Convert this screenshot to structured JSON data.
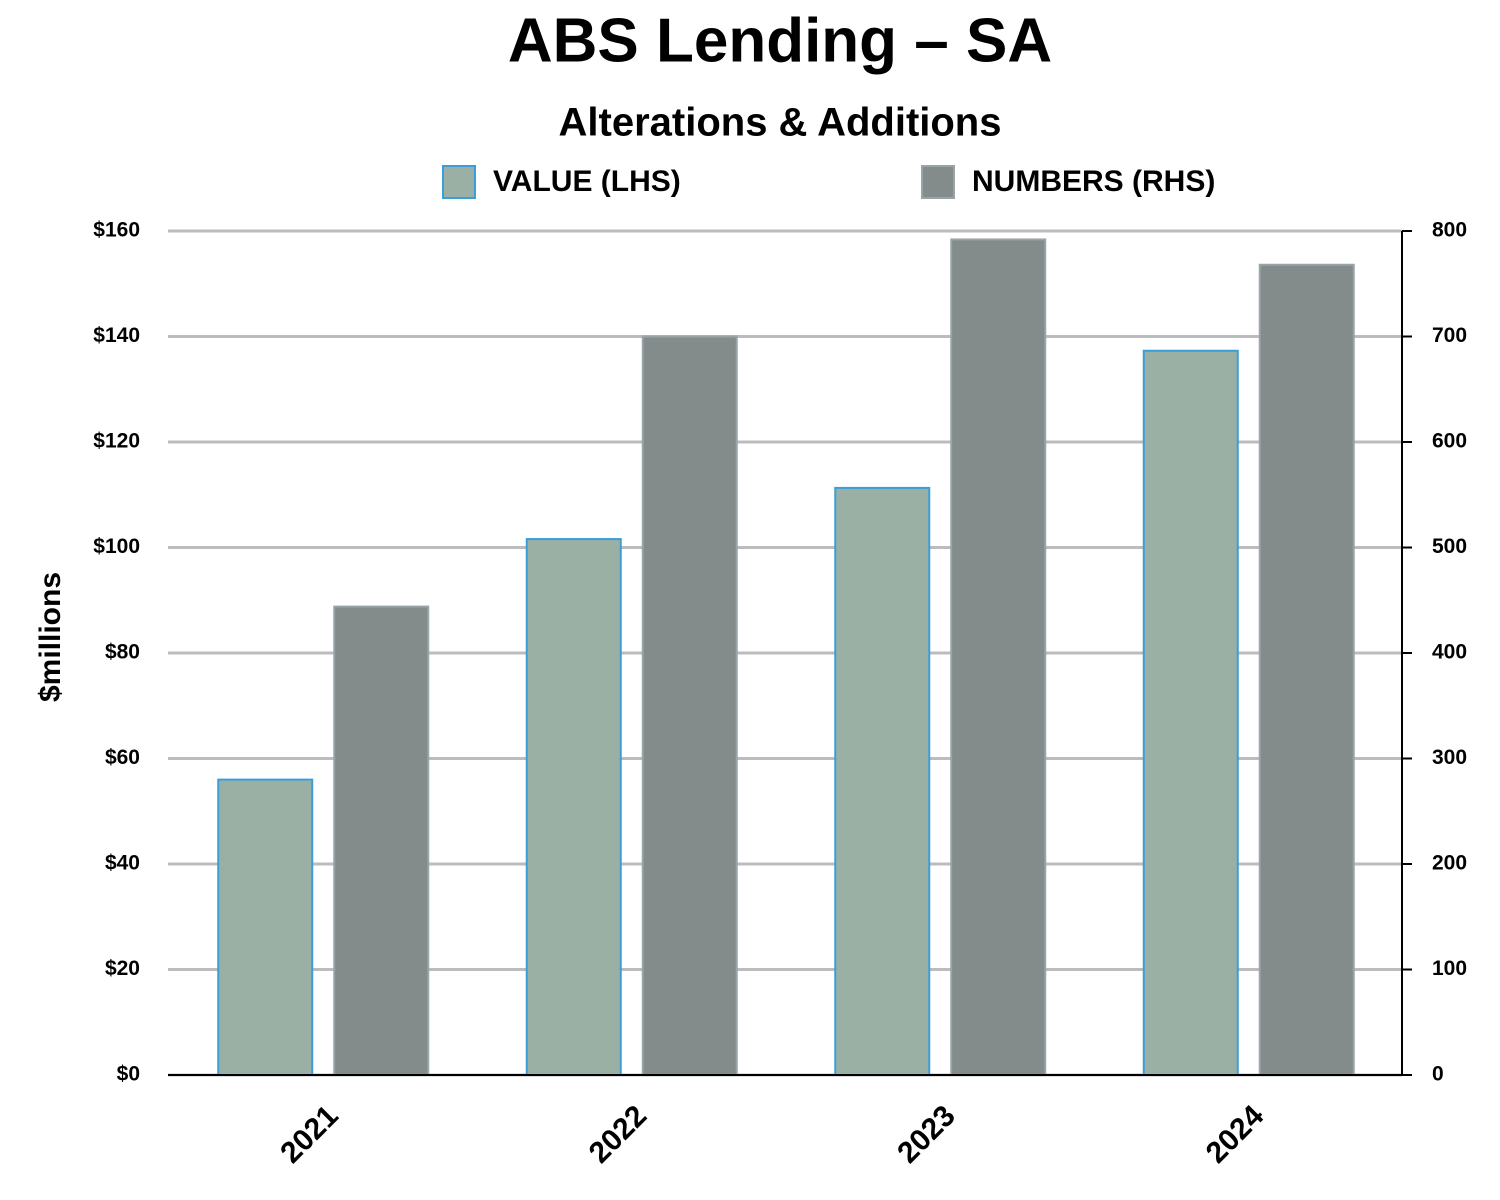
{
  "chart_data": {
    "type": "bar",
    "title": "ABS Lending – SA",
    "subtitle": "Alterations & Additions",
    "y_label": "$millions",
    "categories": [
      "2021",
      "2022",
      "2023",
      "2024"
    ],
    "series": [
      {
        "name": "VALUE (LHS)",
        "color": "#9ab0a4",
        "values": [
          56,
          101.6,
          111.3,
          137.3
        ]
      },
      {
        "name": "NUMBERS (RHS)",
        "color": "#838b8b",
        "axis": "y2",
        "values": [
          444,
          700,
          792,
          768
        ]
      }
    ],
    "ylim": [
      0,
      160
    ],
    "yticks": [
      {
        "value": 0,
        "label": "$0"
      },
      {
        "value": 20,
        "label": "$20"
      },
      {
        "value": 40,
        "label": "$40"
      },
      {
        "value": 60,
        "label": "$60"
      },
      {
        "value": 80,
        "label": "$80"
      },
      {
        "value": 100,
        "label": "$100"
      },
      {
        "value": 120,
        "label": "$120"
      },
      {
        "value": 140,
        "label": "$140"
      },
      {
        "value": 160,
        "label": "$160"
      }
    ],
    "y2lim": [
      0,
      800
    ],
    "y2ticks": [
      0,
      100,
      200,
      300,
      400,
      500,
      600,
      700,
      800
    ],
    "grid": true,
    "legend": "top"
  }
}
